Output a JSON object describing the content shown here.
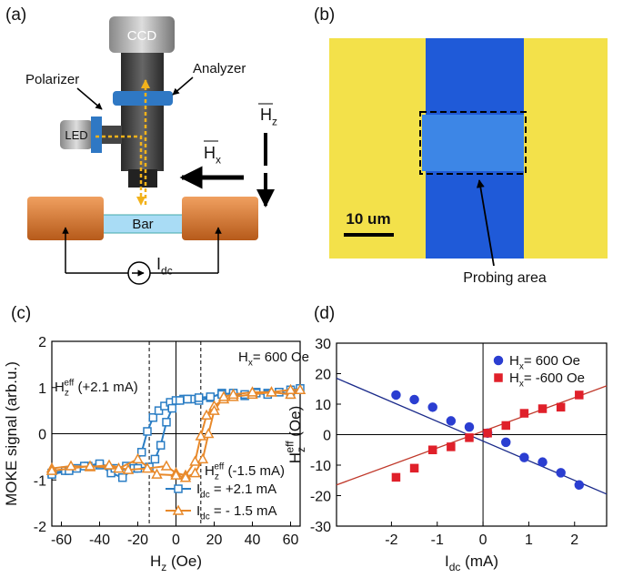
{
  "figure": {
    "a": {
      "label": "(a)",
      "ccd": "CCD",
      "analyzer": "Analyzer",
      "polarizer": "Polarizer",
      "led": "LED",
      "bar": "Bar",
      "hz": {
        "base": "H",
        "sub": "z"
      },
      "hx": {
        "base": "H",
        "sub": "x"
      },
      "idc": {
        "base": "I",
        "sub": "dc"
      }
    },
    "b": {
      "label": "(b)",
      "scale": "10 um",
      "probe": "Probing area"
    }
  },
  "chart_data": [
    {
      "type": "line",
      "panel_label": "(c)",
      "xlabel": {
        "base": "H",
        "sub": "z",
        "rest": " (Oe)"
      },
      "ylabel": "MOKE signal (arb.u.)",
      "xlim": [
        -65,
        65
      ],
      "xticks": [
        -60,
        -40,
        -20,
        0,
        20,
        40,
        60
      ],
      "ylim": [
        -2,
        2
      ],
      "yticks": [
        -2,
        -1,
        0,
        1,
        2
      ],
      "annotations": [
        {
          "text": {
            "base": "H",
            "sub": "x",
            "rest": "= 600 Oe"
          }
        },
        {
          "text": {
            "base": "H",
            "sub": "z",
            "sup": "eff",
            "rest": " (+2.1 mA)"
          }
        },
        {
          "text": {
            "base": "H",
            "sub": "z",
            "sup": "eff",
            "rest": " (-1.5 mA)"
          }
        }
      ],
      "vlines": [
        -14,
        13
      ],
      "series": [
        {
          "name": {
            "base": "I",
            "sub": "dc",
            "rest": " = +2.1 mA"
          },
          "color": "#2a7dc4",
          "marker": "square",
          "x": [
            -65,
            -58,
            -52,
            -46,
            -40,
            -34,
            -28,
            -22,
            -18,
            -15,
            -12,
            -9,
            -6,
            -3,
            0,
            4,
            8,
            12,
            18,
            24,
            30,
            36,
            42,
            48,
            54,
            60,
            65,
            60,
            54,
            48,
            42,
            36,
            30,
            24,
            18,
            12,
            6,
            2,
            -2,
            -5,
            -8,
            -11,
            -14,
            -20,
            -26,
            -32,
            -40,
            -48,
            -56,
            -65
          ],
          "values": [
            -0.85,
            -0.8,
            -0.75,
            -0.7,
            -0.68,
            -0.85,
            -0.95,
            -0.75,
            -0.4,
            0.05,
            0.35,
            0.5,
            0.6,
            0.68,
            0.72,
            0.75,
            0.75,
            0.72,
            0.78,
            0.88,
            0.85,
            0.82,
            0.9,
            0.88,
            0.9,
            0.85,
            0.98,
            0.95,
            0.9,
            0.85,
            0.88,
            0.85,
            0.88,
            0.85,
            0.8,
            0.78,
            0.75,
            0.72,
            0.55,
            0.25,
            -0.25,
            -0.55,
            -0.72,
            -0.75,
            -0.7,
            -0.75,
            -0.65,
            -0.7,
            -0.8,
            -0.88
          ]
        },
        {
          "name": {
            "base": "I",
            "sub": "dc",
            "rest": " = - 1.5 mA"
          },
          "color": "#e8892a",
          "marker": "triangle",
          "x": [
            -65,
            -55,
            -45,
            -35,
            -25,
            -15,
            -5,
            0,
            5,
            10,
            13,
            16,
            20,
            25,
            30,
            40,
            50,
            60,
            65,
            60,
            50,
            40,
            30,
            25,
            20,
            17,
            14,
            10,
            5,
            0,
            -10,
            -20,
            -30,
            -45,
            -65
          ],
          "values": [
            -0.75,
            -0.7,
            -0.72,
            -0.68,
            -0.78,
            -0.75,
            -0.7,
            -0.85,
            -0.9,
            -0.6,
            -0.05,
            0.4,
            0.6,
            0.75,
            0.8,
            0.85,
            0.9,
            0.85,
            0.95,
            0.95,
            0.9,
            0.9,
            0.85,
            0.8,
            0.5,
            0.0,
            -0.55,
            -0.85,
            -0.95,
            -0.9,
            -0.88,
            -0.55,
            -0.75,
            -0.7,
            -0.8
          ]
        }
      ]
    },
    {
      "type": "scatter",
      "panel_label": "(d)",
      "xlabel": {
        "base": "I",
        "sub": "dc",
        "rest": " (mA)"
      },
      "ylabel": {
        "base": "H",
        "sub": "z",
        "sup": "eff",
        "rest": " (Oe)"
      },
      "xlim": [
        -3.2,
        2.7
      ],
      "xticks": [
        -2,
        -1,
        0,
        1,
        2
      ],
      "ylim": [
        -30,
        30
      ],
      "yticks": [
        -30,
        -20,
        -10,
        0,
        10,
        20,
        30
      ],
      "series": [
        {
          "name": {
            "base": "H",
            "sub": "x",
            "rest": "= 600 Oe"
          },
          "color": "#2b3ed1",
          "marker": "circle",
          "x": [
            -1.9,
            -1.5,
            -1.1,
            -0.7,
            -0.3,
            0.1,
            0.5,
            0.9,
            1.3,
            1.7,
            2.1
          ],
          "values": [
            13,
            11.5,
            9,
            4.5,
            2.5,
            0.5,
            -2.5,
            -7.5,
            -9,
            -12.5,
            -16.5
          ]
        },
        {
          "name": {
            "base": "H",
            "sub": "x",
            "rest": "= -600 Oe"
          },
          "color": "#e0202a",
          "marker": "square",
          "x": [
            -1.9,
            -1.5,
            -1.1,
            -0.7,
            -0.3,
            0.1,
            0.5,
            0.9,
            1.3,
            1.7,
            2.1
          ],
          "values": [
            -14,
            -11,
            -5,
            -4,
            -1,
            0.5,
            3,
            7,
            8.5,
            9,
            13
          ]
        }
      ],
      "fit_lines": [
        {
          "color": "#1a2a8a",
          "x": [
            -3.2,
            2.7
          ],
          "values": [
            18.5,
            -19.5
          ]
        },
        {
          "color": "#c0392b",
          "x": [
            -3.2,
            2.7
          ],
          "values": [
            -16.5,
            16
          ]
        }
      ]
    }
  ]
}
